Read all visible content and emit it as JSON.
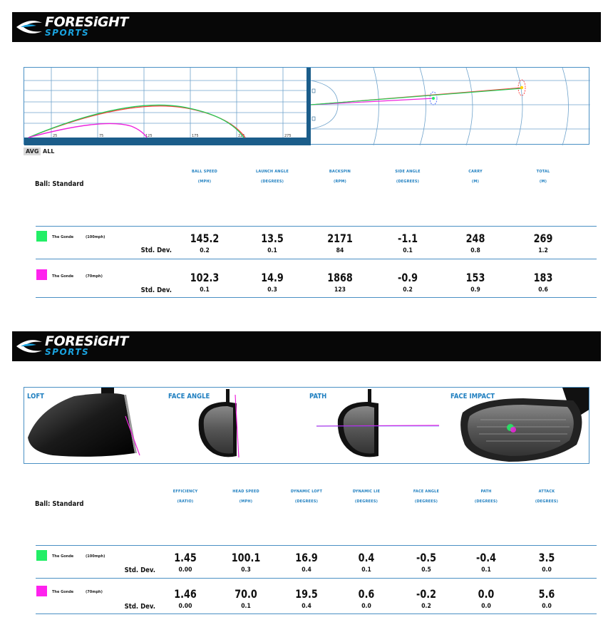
{
  "brand": {
    "name": "FORESiGHT",
    "sub": "SPORTS"
  },
  "colors": {
    "accent": "#1f7fc0",
    "player1": "#22ee66",
    "player2": "#ff22ee",
    "banner": "#070707"
  },
  "ball_flight": {
    "side_view_ticks": [
      "25",
      "75",
      "125",
      "175",
      "225",
      "275"
    ],
    "tabs": [
      "AVG",
      "ALL"
    ],
    "active_tab": "AVG"
  },
  "ball_table": {
    "ball_label": "Ball: Standard",
    "columns": [
      {
        "name": "BALL SPEED",
        "unit": "(MPH)"
      },
      {
        "name": "LAUNCH ANGLE",
        "unit": "(DEGREES)"
      },
      {
        "name": "BACKSPIN",
        "unit": "(RPM)"
      },
      {
        "name": "SIDE ANGLE",
        "unit": "(DEGREES)"
      },
      {
        "name": "CARRY",
        "unit": "(M)"
      },
      {
        "name": "TOTAL",
        "unit": "(M)"
      }
    ],
    "std_label": "Std. Dev.",
    "rows": [
      {
        "player": "The Gonde",
        "speed": "(100mph)",
        "values": [
          "145.2",
          "13.5",
          "2171",
          "-1.1",
          "248",
          "269"
        ],
        "std": [
          "0.2",
          "0.1",
          "84",
          "0.1",
          "0.8",
          "1.2"
        ]
      },
      {
        "player": "The Gonde",
        "speed": "(70mph)",
        "values": [
          "102.3",
          "14.9",
          "1868",
          "-0.9",
          "153",
          "183"
        ],
        "std": [
          "0.1",
          "0.3",
          "123",
          "0.2",
          "0.9",
          "0.6"
        ]
      }
    ]
  },
  "club_views": {
    "labels": [
      "LOFT",
      "FACE ANGLE",
      "PATH",
      "FACE IMPACT"
    ]
  },
  "club_table": {
    "ball_label": "Ball: Standard",
    "columns": [
      {
        "name": "EFFICIENCY",
        "unit": "(RATIO)"
      },
      {
        "name": "HEAD SPEED",
        "unit": "(MPH)"
      },
      {
        "name": "DYNAMIC LOFT",
        "unit": "(DEGREES)"
      },
      {
        "name": "DYNAMIC LIE",
        "unit": "(DEGREES)"
      },
      {
        "name": "FACE ANGLE",
        "unit": "(DEGREES)"
      },
      {
        "name": "PATH",
        "unit": "(DEGREES)"
      },
      {
        "name": "ATTACK",
        "unit": "(DEGREES)"
      }
    ],
    "std_label": "Std. Dev.",
    "rows": [
      {
        "player": "The Gonde",
        "speed": "(100mph)",
        "values": [
          "1.45",
          "100.1",
          "16.9",
          "0.4",
          "-0.5",
          "-0.4",
          "3.5"
        ],
        "std": [
          "0.00",
          "0.3",
          "0.4",
          "0.1",
          "0.5",
          "0.1",
          "0.0"
        ]
      },
      {
        "player": "The Gonde",
        "speed": "(70mph)",
        "values": [
          "1.46",
          "70.0",
          "19.5",
          "0.6",
          "-0.2",
          "0.0",
          "5.6"
        ],
        "std": [
          "0.00",
          "0.1",
          "0.4",
          "0.0",
          "0.2",
          "0.0",
          "0.0"
        ]
      }
    ]
  }
}
